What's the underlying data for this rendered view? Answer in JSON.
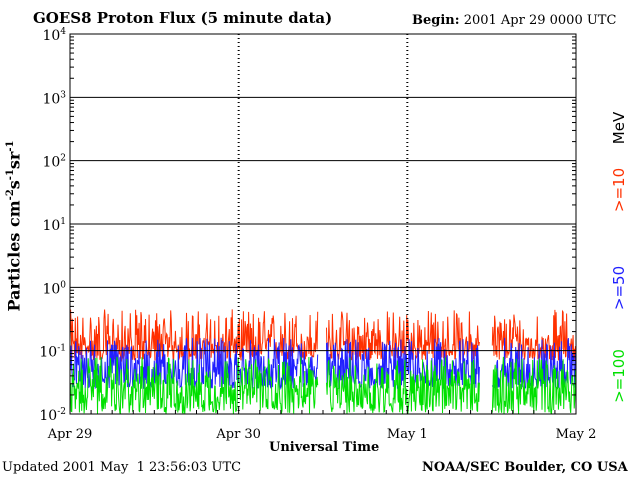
{
  "header": {
    "title": "GOES8 Proton Flux (5 minute data)",
    "begin_label": "Begin:",
    "begin_value": "2001 Apr 29 0000 UTC"
  },
  "footer": {
    "updated_label": "Updated",
    "updated_value": "2001 May  1 23:56:03 UTC",
    "credit": "NOAA/SEC Boulder, CO USA"
  },
  "legend": {
    "unit": "MeV",
    "items": [
      {
        "label": ">=10",
        "color": "#ff3000"
      },
      {
        "label": ">=50",
        "color": "#2020ff"
      },
      {
        "label": ">=100",
        "color": "#00e000"
      }
    ]
  },
  "chart_data": {
    "type": "line",
    "title": "GOES8 Proton Flux (5 minute data)",
    "xlabel": "Universal Time",
    "ylabel_base": "Particles cm",
    "ylabel_parts": [
      "-2",
      "s",
      "-1",
      "sr",
      "-1"
    ],
    "y_scale": "log",
    "ylim": [
      0.01,
      10000
    ],
    "y_ticks": [
      {
        "base": "10",
        "exp": "-2"
      },
      {
        "base": "10",
        "exp": "-1"
      },
      {
        "base": "10",
        "exp": "0"
      },
      {
        "base": "10",
        "exp": "1"
      },
      {
        "base": "10",
        "exp": "2"
      },
      {
        "base": "10",
        "exp": "3"
      },
      {
        "base": "10",
        "exp": "4"
      }
    ],
    "x_ticks": [
      "Apr 29",
      "Apr 30",
      "May 1",
      "May 2"
    ],
    "xlim_days": [
      0,
      3
    ],
    "data_gaps_days": [
      [
        1.47,
        1.52
      ],
      [
        2.43,
        2.5
      ]
    ],
    "series": [
      {
        "name": ">=10",
        "color": "#ff3000",
        "typical": 0.12,
        "min": 0.07,
        "max": 0.45
      },
      {
        "name": ">=50",
        "color": "#2020ff",
        "typical": 0.05,
        "min": 0.025,
        "max": 0.16
      },
      {
        "name": ">=100",
        "color": "#00e000",
        "typical": 0.025,
        "min": 0.01,
        "max": 0.08
      }
    ]
  }
}
